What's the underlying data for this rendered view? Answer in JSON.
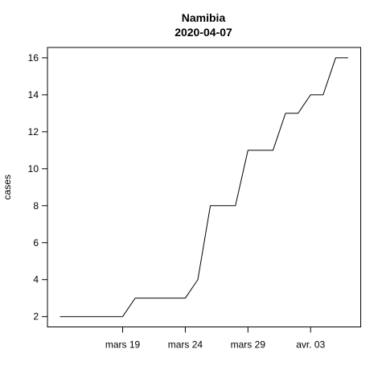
{
  "chart_data": {
    "type": "line",
    "title": "Namibia",
    "subtitle": "2020-04-07",
    "xlabel": "",
    "ylabel": "cases",
    "x_tick_labels": [
      "mars 19",
      "mars 24",
      "mars 29",
      "avr. 03"
    ],
    "x_tick_dates": [
      "2020-03-19",
      "2020-03-24",
      "2020-03-29",
      "2020-04-03"
    ],
    "xlim": [
      "2020-03-13",
      "2020-04-07"
    ],
    "yticks": [
      2,
      4,
      6,
      8,
      10,
      12,
      14,
      16
    ],
    "ylim": [
      1.44,
      16.56
    ],
    "grid": false,
    "legend": "none",
    "line_color": "#000000",
    "x": [
      "2020-03-14",
      "2020-03-15",
      "2020-03-16",
      "2020-03-17",
      "2020-03-18",
      "2020-03-19",
      "2020-03-20",
      "2020-03-21",
      "2020-03-22",
      "2020-03-23",
      "2020-03-24",
      "2020-03-25",
      "2020-03-26",
      "2020-03-27",
      "2020-03-28",
      "2020-03-29",
      "2020-03-30",
      "2020-03-31",
      "2020-04-01",
      "2020-04-02",
      "2020-04-03",
      "2020-04-04",
      "2020-04-05",
      "2020-04-06"
    ],
    "values": [
      2,
      2,
      2,
      2,
      2,
      2,
      3,
      3,
      3,
      3,
      3,
      4,
      8,
      8,
      8,
      11,
      11,
      11,
      13,
      13,
      14,
      14,
      16,
      16
    ]
  }
}
